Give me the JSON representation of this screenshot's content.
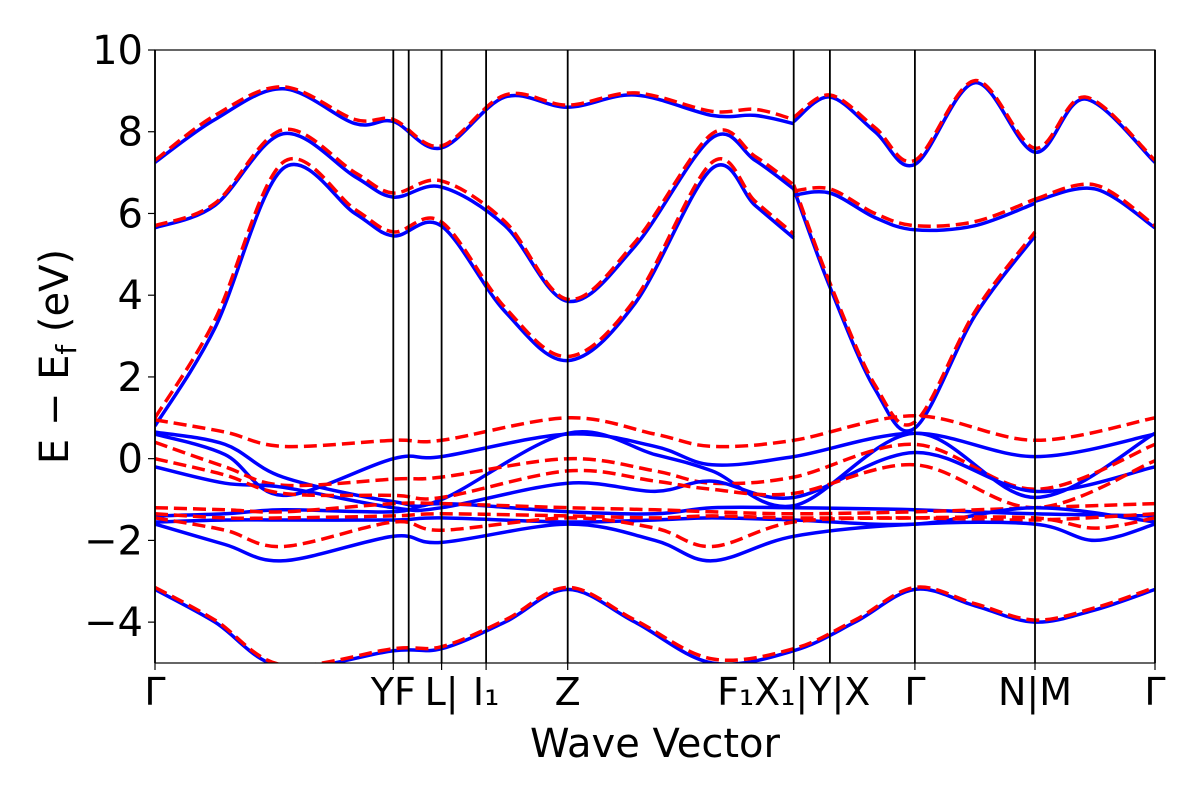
{
  "chart_data": {
    "type": "line",
    "title": "",
    "xlabel": "Wave Vector",
    "ylabel": "E − E",
    "ylabel_sub": "f",
    "ylabel_unit": " (eV)",
    "ylim": [
      -5,
      10
    ],
    "xlim": [
      0,
      1
    ],
    "yticks": [
      {
        "value": 10,
        "label": "10"
      },
      {
        "value": 8,
        "label": "8"
      },
      {
        "value": 6,
        "label": "6"
      },
      {
        "value": 4,
        "label": "4"
      },
      {
        "value": 2,
        "label": "2"
      },
      {
        "value": 0,
        "label": "0"
      },
      {
        "value": -2,
        "label": "−2"
      },
      {
        "value": -4,
        "label": "−4"
      }
    ],
    "kpoints": [
      {
        "x": 0.0,
        "label": "Γ"
      },
      {
        "x": 0.2383,
        "label": "YF"
      },
      {
        "x": 0.2866,
        "label": "L|"
      },
      {
        "x": 0.3311,
        "label": "I₁"
      },
      {
        "x": 0.4127,
        "label": "Z"
      },
      {
        "x": 0.6387,
        "label": "F₁X₁|Y|X"
      },
      {
        "x": 0.7599,
        "label": "Γ"
      },
      {
        "x": 0.88,
        "label": "N|M"
      },
      {
        "x": 1.0,
        "label": "Γ"
      }
    ],
    "kpoint_lines": [
      0.0,
      0.2383,
      0.2537,
      0.2866,
      0.3311,
      0.4127,
      0.6387,
      0.6749,
      0.7599,
      0.88,
      1.0
    ],
    "series_styles": {
      "blue": "#0000ff",
      "red": "#ff0000"
    },
    "series": [
      {
        "color": "blue",
        "x": [
          0,
          0.06,
          0.128,
          0.2,
          0.2383,
          0.286,
          0.35,
          0.4127,
          0.48,
          0.557,
          0.6,
          0.6387
        ],
        "values": [
          0.8,
          3.2,
          7.1,
          6.0,
          5.45,
          5.7,
          3.6,
          2.4,
          3.8,
          7.1,
          6.2,
          5.4
        ]
      },
      {
        "color": "red",
        "x": [
          0,
          0.06,
          0.128,
          0.2,
          0.2383,
          0.286,
          0.35,
          0.4127,
          0.48,
          0.557,
          0.6,
          0.6387
        ],
        "values": [
          1.0,
          3.4,
          7.25,
          6.1,
          5.55,
          5.8,
          3.7,
          2.5,
          3.9,
          7.25,
          6.3,
          5.5
        ]
      },
      {
        "color": "blue",
        "x": [
          0,
          0.06,
          0.128,
          0.2,
          0.2383,
          0.286,
          0.35,
          0.4127,
          0.48,
          0.557,
          0.6,
          0.6387
        ],
        "values": [
          5.65,
          6.2,
          7.95,
          6.9,
          6.4,
          6.65,
          5.7,
          3.85,
          5.2,
          7.85,
          7.3,
          6.6
        ]
      },
      {
        "color": "red",
        "x": [
          0,
          0.06,
          0.128,
          0.2,
          0.2383,
          0.286,
          0.35,
          0.4127,
          0.48,
          0.557,
          0.6,
          0.6387
        ],
        "values": [
          5.7,
          6.25,
          8.05,
          7.0,
          6.5,
          6.8,
          5.8,
          3.9,
          5.3,
          7.95,
          7.4,
          6.7
        ]
      },
      {
        "color": "blue",
        "x": [
          0,
          0.06,
          0.128,
          0.2,
          0.2383,
          0.286,
          0.35,
          0.4127,
          0.48,
          0.557,
          0.6,
          0.6387
        ],
        "values": [
          7.25,
          8.3,
          9.05,
          8.2,
          8.25,
          7.6,
          8.85,
          8.6,
          8.9,
          8.4,
          8.4,
          8.2
        ]
      },
      {
        "color": "red",
        "x": [
          0,
          0.06,
          0.128,
          0.2,
          0.2383,
          0.286,
          0.35,
          0.4127,
          0.48,
          0.557,
          0.6,
          0.6387
        ],
        "values": [
          7.3,
          8.4,
          9.1,
          8.3,
          8.3,
          7.65,
          8.9,
          8.65,
          8.95,
          8.5,
          8.55,
          8.3
        ]
      },
      {
        "color": "blue",
        "x": [
          0.6387,
          0.6749,
          0.72,
          0.7599,
          0.82,
          0.88
        ],
        "values": [
          6.6,
          4.2,
          1.7,
          0.75,
          3.5,
          5.45
        ]
      },
      {
        "color": "red",
        "x": [
          0.6387,
          0.6749,
          0.72,
          0.7599,
          0.82,
          0.88
        ],
        "values": [
          6.7,
          4.3,
          1.8,
          0.9,
          3.6,
          5.55
        ]
      },
      {
        "color": "blue",
        "x": [
          0.6387,
          0.6749,
          0.72,
          0.7599,
          0.82,
          0.88
        ],
        "values": [
          6.45,
          6.5,
          5.9,
          5.6,
          5.7,
          6.25
        ]
      },
      {
        "color": "red",
        "x": [
          0.6387,
          0.6749,
          0.72,
          0.7599,
          0.82,
          0.88
        ],
        "values": [
          6.55,
          6.6,
          6.0,
          5.7,
          5.8,
          6.35
        ]
      },
      {
        "color": "blue",
        "x": [
          0.6387,
          0.6749,
          0.72,
          0.7599,
          0.82,
          0.88,
          0.93,
          1.0
        ],
        "values": [
          8.25,
          8.85,
          8.0,
          7.2,
          9.2,
          7.5,
          8.8,
          7.25
        ]
      },
      {
        "color": "red",
        "x": [
          0.6387,
          0.6749,
          0.72,
          0.7599,
          0.82,
          0.88,
          0.93,
          1.0
        ],
        "values": [
          8.35,
          8.9,
          8.1,
          7.3,
          9.25,
          7.6,
          8.85,
          7.3
        ]
      },
      {
        "color": "blue",
        "x": [
          0.88,
          0.94,
          1.0
        ],
        "values": [
          6.3,
          6.6,
          5.65
        ]
      },
      {
        "color": "red",
        "x": [
          0.88,
          0.94,
          1.0
        ],
        "values": [
          6.35,
          6.7,
          5.7
        ]
      },
      {
        "color": "blue",
        "x": [
          0,
          0.07,
          0.128,
          0.2383,
          0.2866,
          0.4127,
          0.5,
          0.557,
          0.6387,
          0.7599,
          0.88,
          1.0
        ],
        "values": [
          0.65,
          0.35,
          -0.45,
          -1.05,
          -1.0,
          0.62,
          0.1,
          -0.3,
          -1.15,
          0.62,
          -0.95,
          0.62
        ]
      },
      {
        "color": "red",
        "x": [
          0,
          0.07,
          0.128,
          0.2383,
          0.2866,
          0.4127,
          0.5,
          0.557,
          0.6387,
          0.7599,
          0.88,
          1.0
        ],
        "values": [
          0.95,
          0.65,
          0.3,
          0.45,
          0.45,
          1.0,
          0.6,
          0.3,
          0.45,
          1.05,
          0.45,
          1.0
        ]
      },
      {
        "color": "blue",
        "x": [
          0,
          0.07,
          0.128,
          0.2383,
          0.2866,
          0.4127,
          0.5,
          0.557,
          0.6387,
          0.7599,
          0.88,
          1.0
        ],
        "values": [
          0.6,
          0.1,
          -0.9,
          0.0,
          0.05,
          0.6,
          0.3,
          -0.15,
          0.05,
          0.62,
          0.05,
          0.6
        ]
      },
      {
        "color": "red",
        "x": [
          0,
          0.07,
          0.128,
          0.2383,
          0.2866,
          0.4127,
          0.5,
          0.557,
          0.6387,
          0.7599,
          0.88,
          1.0
        ],
        "values": [
          0.4,
          -0.2,
          -0.65,
          -0.5,
          -0.45,
          0.0,
          -0.3,
          -0.6,
          -0.45,
          0.35,
          -0.75,
          0.35
        ]
      },
      {
        "color": "blue",
        "x": [
          0,
          0.07,
          0.128,
          0.2383,
          0.2866,
          0.4127,
          0.5,
          0.557,
          0.6387,
          0.7599,
          0.88,
          1.0
        ],
        "values": [
          -0.2,
          -0.6,
          -0.7,
          -1.2,
          -1.2,
          -0.6,
          -0.8,
          -0.55,
          -0.95,
          0.15,
          -0.8,
          -0.2
        ]
      },
      {
        "color": "red",
        "x": [
          0,
          0.07,
          0.128,
          0.2383,
          0.2866,
          0.4127,
          0.5,
          0.557,
          0.6387,
          0.7599,
          0.88,
          1.0
        ],
        "values": [
          0.0,
          -0.4,
          -0.85,
          -0.9,
          -0.95,
          -0.3,
          -0.55,
          -0.75,
          -0.85,
          -0.15,
          -1.2,
          -0.05
        ]
      },
      {
        "color": "blue",
        "x": [
          0,
          0.07,
          0.128,
          0.2383,
          0.2866,
          0.4127,
          0.5,
          0.557,
          0.6387,
          0.7599,
          0.88,
          1.0
        ],
        "values": [
          -1.4,
          -1.35,
          -1.25,
          -1.3,
          -1.1,
          -1.3,
          -1.35,
          -1.2,
          -1.2,
          -1.25,
          -1.35,
          -1.4
        ]
      },
      {
        "color": "red",
        "x": [
          0,
          0.07,
          0.128,
          0.2383,
          0.2866,
          0.4127,
          0.5,
          0.557,
          0.6387,
          0.7599,
          0.88,
          1.0
        ],
        "values": [
          -1.2,
          -1.25,
          -1.3,
          -1.1,
          -1.1,
          -1.2,
          -1.25,
          -1.3,
          -1.35,
          -1.3,
          -1.2,
          -1.1
        ]
      },
      {
        "color": "blue",
        "x": [
          0,
          0.07,
          0.128,
          0.2383,
          0.2866,
          0.4127,
          0.5,
          0.557,
          0.6387,
          0.7599,
          0.88,
          1.0
        ],
        "values": [
          -1.55,
          -1.5,
          -1.5,
          -1.5,
          -1.45,
          -1.55,
          -1.5,
          -1.45,
          -1.5,
          -1.6,
          -1.2,
          -1.55
        ]
      },
      {
        "color": "red",
        "x": [
          0,
          0.07,
          0.128,
          0.2383,
          0.2866,
          0.4127,
          0.5,
          0.557,
          0.6387,
          0.7599,
          0.88,
          1.0
        ],
        "values": [
          -1.35,
          -1.45,
          -1.45,
          -1.4,
          -1.35,
          -1.4,
          -1.45,
          -1.4,
          -1.45,
          -1.45,
          -1.5,
          -1.35
        ]
      },
      {
        "color": "blue",
        "x": [
          0,
          0.07,
          0.128,
          0.2383,
          0.2866,
          0.4127,
          0.5,
          0.557,
          0.6387,
          0.7599,
          0.88,
          0.94,
          1.0
        ],
        "values": [
          -1.6,
          -2.1,
          -2.5,
          -1.9,
          -2.05,
          -1.6,
          -2.0,
          -2.5,
          -1.9,
          -1.6,
          -1.6,
          -2.0,
          -1.6
        ]
      },
      {
        "color": "red",
        "x": [
          0,
          0.07,
          0.128,
          0.2383,
          0.2866,
          0.4127,
          0.5,
          0.557,
          0.6387,
          0.7599,
          0.88,
          0.94,
          1.0
        ],
        "values": [
          -1.45,
          -1.75,
          -2.15,
          -1.55,
          -1.75,
          -1.45,
          -1.7,
          -2.15,
          -1.55,
          -1.45,
          -1.45,
          -1.7,
          -1.45
        ]
      },
      {
        "color": "blue",
        "x": [
          0,
          0.06,
          0.128,
          0.2383,
          0.2866,
          0.35,
          0.4127,
          0.48,
          0.557,
          0.6387,
          0.7,
          0.7599,
          0.82,
          0.88,
          0.94,
          1.0
        ],
        "values": [
          -3.2,
          -4.0,
          -5.1,
          -4.7,
          -4.65,
          -4.0,
          -3.2,
          -4.0,
          -5.0,
          -4.7,
          -4.0,
          -3.2,
          -3.6,
          -4.0,
          -3.7,
          -3.2
        ]
      },
      {
        "color": "red",
        "x": [
          0,
          0.06,
          0.128,
          0.2383,
          0.2866,
          0.35,
          0.4127,
          0.48,
          0.557,
          0.6387,
          0.7,
          0.7599,
          0.82,
          0.88,
          0.94,
          1.0
        ],
        "values": [
          -3.15,
          -3.95,
          -5.05,
          -4.65,
          -4.6,
          -3.95,
          -3.15,
          -3.95,
          -4.9,
          -4.65,
          -3.95,
          -3.15,
          -3.55,
          -3.95,
          -3.65,
          -3.15
        ]
      }
    ]
  }
}
